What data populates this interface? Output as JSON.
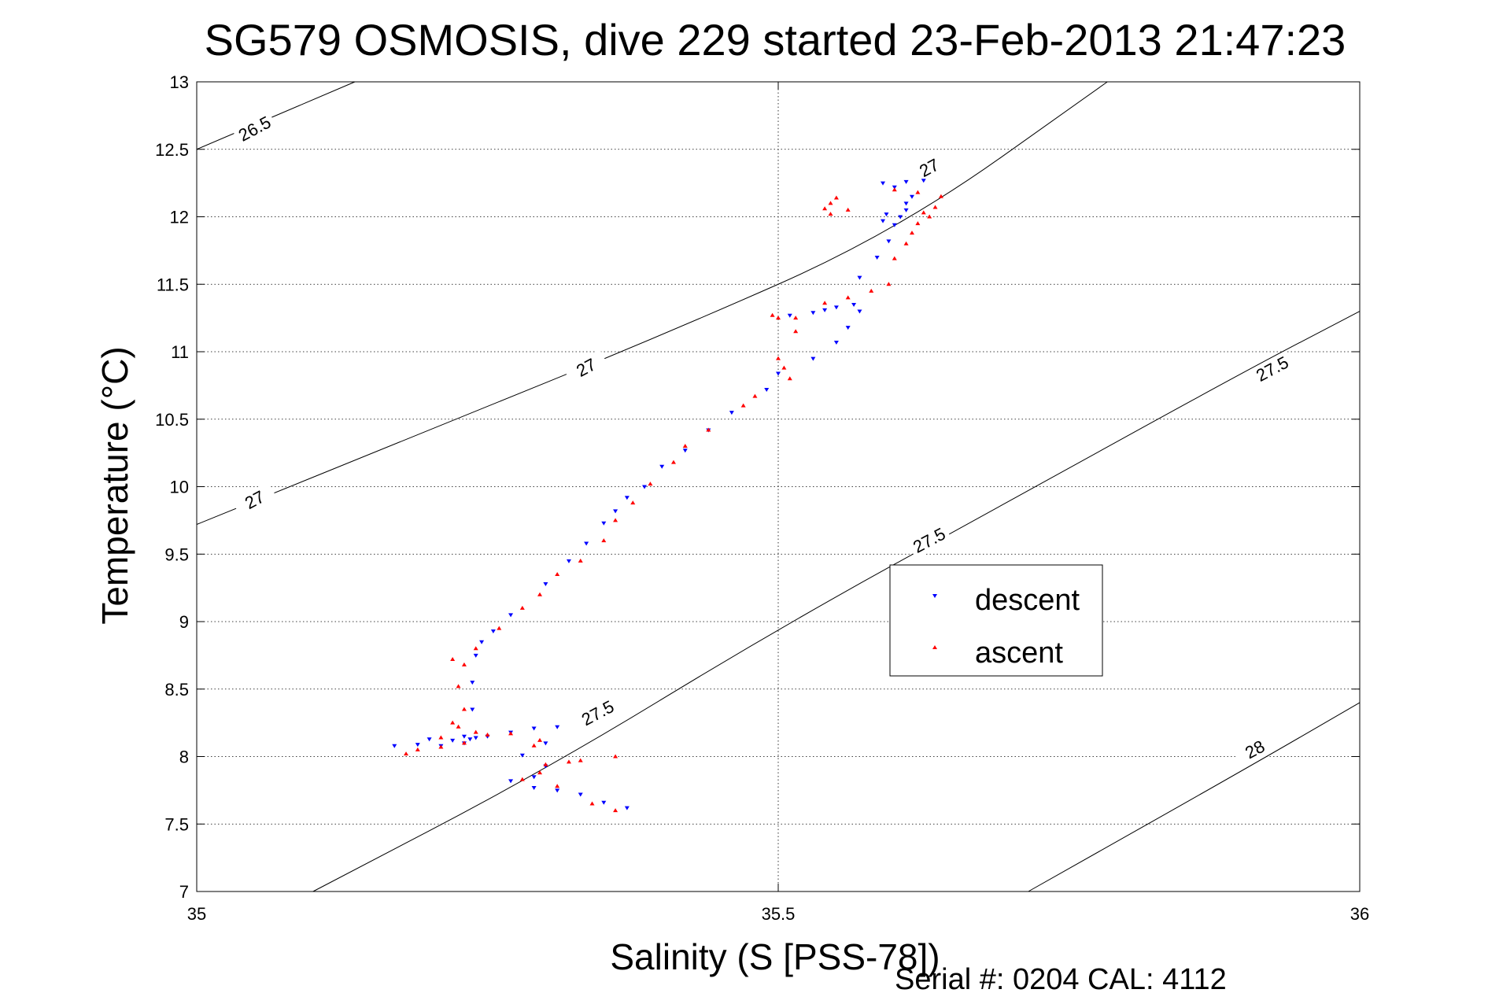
{
  "title": "SG579 OSMOSIS, dive 229 started 23-Feb-2013 21:47:23",
  "footer": "Serial #: 0204  CAL: 4112",
  "chart_data": {
    "type": "scatter",
    "title": "SG579 OSMOSIS, dive 229 started 23-Feb-2013 21:47:23",
    "xlabel": "Salinity (S [PSS-78])",
    "ylabel": "Temperature (°C)",
    "xlim": [
      35,
      36
    ],
    "ylim": [
      7,
      13
    ],
    "xticks": [
      35,
      35.5,
      36
    ],
    "xtick_labels": [
      "35",
      "35.5",
      "36"
    ],
    "yticks": [
      7,
      7.5,
      8,
      8.5,
      9,
      9.5,
      10,
      10.5,
      11,
      11.5,
      12,
      12.5,
      13
    ],
    "ytick_labels": [
      "7",
      "7.5",
      "8",
      "8.5",
      "9",
      "9.5",
      "10",
      "10.5",
      "11",
      "11.5",
      "12",
      "12.5",
      "13"
    ],
    "grid": true,
    "legend_position": "center-right",
    "colors": {
      "descent": "#0000ff",
      "ascent": "#ff0000",
      "contour": "#000000"
    },
    "density_contours": [
      {
        "level": 26.5,
        "points": [
          [
            35.0,
            12.5
          ],
          [
            35.136,
            13.0
          ]
        ],
        "labels": [
          {
            "text": "26.5",
            "x": 35.05,
            "y": 12.65
          }
        ]
      },
      {
        "level": 27,
        "points": [
          [
            35.0,
            9.72
          ],
          [
            35.2,
            10.42
          ],
          [
            35.4,
            11.12
          ],
          [
            35.6,
            11.88
          ],
          [
            35.783,
            13.0
          ]
        ],
        "labels": [
          {
            "text": "27",
            "x": 35.05,
            "y": 9.9
          },
          {
            "text": "27",
            "x": 35.335,
            "y": 10.88
          },
          {
            "text": "27",
            "x": 35.63,
            "y": 12.36
          }
        ]
      },
      {
        "level": 27.5,
        "points": [
          [
            35.1,
            7.0
          ],
          [
            35.3,
            7.9
          ],
          [
            35.5,
            8.95
          ],
          [
            35.7,
            9.9
          ],
          [
            35.9,
            10.85
          ],
          [
            36.0,
            11.3
          ]
        ],
        "labels": [
          {
            "text": "27.5",
            "x": 35.345,
            "y": 8.32
          },
          {
            "text": "27.5",
            "x": 35.63,
            "y": 9.6
          },
          {
            "text": "27.5",
            "x": 35.925,
            "y": 10.87
          }
        ]
      },
      {
        "level": 28,
        "points": [
          [
            35.715,
            7.0
          ],
          [
            35.9,
            7.9
          ],
          [
            36.0,
            8.4
          ]
        ],
        "labels": [
          {
            "text": "28",
            "x": 35.91,
            "y": 8.05
          }
        ]
      }
    ],
    "series": [
      {
        "name": "descent",
        "marker": "triangle-down",
        "points": [
          [
            35.37,
            7.62
          ],
          [
            35.35,
            7.66
          ],
          [
            35.33,
            7.72
          ],
          [
            35.31,
            7.75
          ],
          [
            35.29,
            7.77
          ],
          [
            35.27,
            7.82
          ],
          [
            35.29,
            7.85
          ],
          [
            35.3,
            7.93
          ],
          [
            35.28,
            8.01
          ],
          [
            35.3,
            8.1
          ],
          [
            35.31,
            8.22
          ],
          [
            35.29,
            8.21
          ],
          [
            35.27,
            8.18
          ],
          [
            35.25,
            8.15
          ],
          [
            35.23,
            8.1
          ],
          [
            35.21,
            8.08
          ],
          [
            35.19,
            8.09
          ],
          [
            35.17,
            8.08
          ],
          [
            35.23,
            8.15
          ],
          [
            35.24,
            8.14
          ],
          [
            35.22,
            8.12
          ],
          [
            35.2,
            8.13
          ],
          [
            35.235,
            8.13
          ],
          [
            35.237,
            8.35
          ],
          [
            35.237,
            8.55
          ],
          [
            35.24,
            8.75
          ],
          [
            35.245,
            8.85
          ],
          [
            35.255,
            8.93
          ],
          [
            35.27,
            9.05
          ],
          [
            35.3,
            9.28
          ],
          [
            35.32,
            9.45
          ],
          [
            35.335,
            9.58
          ],
          [
            35.35,
            9.73
          ],
          [
            35.36,
            9.82
          ],
          [
            35.37,
            9.92
          ],
          [
            35.385,
            10.0
          ],
          [
            35.4,
            10.15
          ],
          [
            35.42,
            10.27
          ],
          [
            35.44,
            10.42
          ],
          [
            35.46,
            10.55
          ],
          [
            35.49,
            10.72
          ],
          [
            35.5,
            10.84
          ],
          [
            35.53,
            10.95
          ],
          [
            35.55,
            11.07
          ],
          [
            35.56,
            11.18
          ],
          [
            35.57,
            11.3
          ],
          [
            35.55,
            11.33
          ],
          [
            35.53,
            11.29
          ],
          [
            35.51,
            11.27
          ],
          [
            35.54,
            11.31
          ],
          [
            35.565,
            11.35
          ],
          [
            35.57,
            11.55
          ],
          [
            35.585,
            11.7
          ],
          [
            35.595,
            11.82
          ],
          [
            35.6,
            11.94
          ],
          [
            35.593,
            12.02
          ],
          [
            35.61,
            12.05
          ],
          [
            35.615,
            12.15
          ],
          [
            35.6,
            12.22
          ],
          [
            35.59,
            12.25
          ],
          [
            35.61,
            12.26
          ],
          [
            35.625,
            12.27
          ],
          [
            35.61,
            12.1
          ],
          [
            35.605,
            12.0
          ],
          [
            35.59,
            11.97
          ]
        ]
      },
      {
        "name": "ascent",
        "marker": "triangle-up",
        "points": [
          [
            35.36,
            7.6
          ],
          [
            35.34,
            7.65
          ],
          [
            35.31,
            7.78
          ],
          [
            35.28,
            7.83
          ],
          [
            35.295,
            7.88
          ],
          [
            35.3,
            7.94
          ],
          [
            35.33,
            7.97
          ],
          [
            35.36,
            8.0
          ],
          [
            35.32,
            7.96
          ],
          [
            35.29,
            8.08
          ],
          [
            35.295,
            8.12
          ],
          [
            35.27,
            8.17
          ],
          [
            35.25,
            8.16
          ],
          [
            35.23,
            8.1
          ],
          [
            35.21,
            8.07
          ],
          [
            35.19,
            8.05
          ],
          [
            35.18,
            8.02
          ],
          [
            35.21,
            8.14
          ],
          [
            35.24,
            8.18
          ],
          [
            35.225,
            8.22
          ],
          [
            35.22,
            8.25
          ],
          [
            35.23,
            8.35
          ],
          [
            35.225,
            8.52
          ],
          [
            35.23,
            8.68
          ],
          [
            35.22,
            8.72
          ],
          [
            35.24,
            8.8
          ],
          [
            35.26,
            8.95
          ],
          [
            35.28,
            9.1
          ],
          [
            35.295,
            9.2
          ],
          [
            35.31,
            9.35
          ],
          [
            35.33,
            9.45
          ],
          [
            35.35,
            9.6
          ],
          [
            35.36,
            9.75
          ],
          [
            35.375,
            9.88
          ],
          [
            35.39,
            10.02
          ],
          [
            35.41,
            10.18
          ],
          [
            35.42,
            10.3
          ],
          [
            35.44,
            10.42
          ],
          [
            35.47,
            10.6
          ],
          [
            35.48,
            10.67
          ],
          [
            35.51,
            10.8
          ],
          [
            35.505,
            10.88
          ],
          [
            35.5,
            10.95
          ],
          [
            35.515,
            11.15
          ],
          [
            35.495,
            11.27
          ],
          [
            35.5,
            11.25
          ],
          [
            35.515,
            11.25
          ],
          [
            35.54,
            11.36
          ],
          [
            35.56,
            11.4
          ],
          [
            35.58,
            11.45
          ],
          [
            35.595,
            11.5
          ],
          [
            35.6,
            11.69
          ],
          [
            35.61,
            11.8
          ],
          [
            35.615,
            11.88
          ],
          [
            35.62,
            11.95
          ],
          [
            35.63,
            12.0
          ],
          [
            35.625,
            12.03
          ],
          [
            35.635,
            12.07
          ],
          [
            35.64,
            12.15
          ],
          [
            35.62,
            12.18
          ],
          [
            35.6,
            12.2
          ],
          [
            35.55,
            12.14
          ],
          [
            35.545,
            12.1
          ],
          [
            35.54,
            12.06
          ],
          [
            35.545,
            12.02
          ],
          [
            35.56,
            12.05
          ]
        ]
      }
    ]
  }
}
